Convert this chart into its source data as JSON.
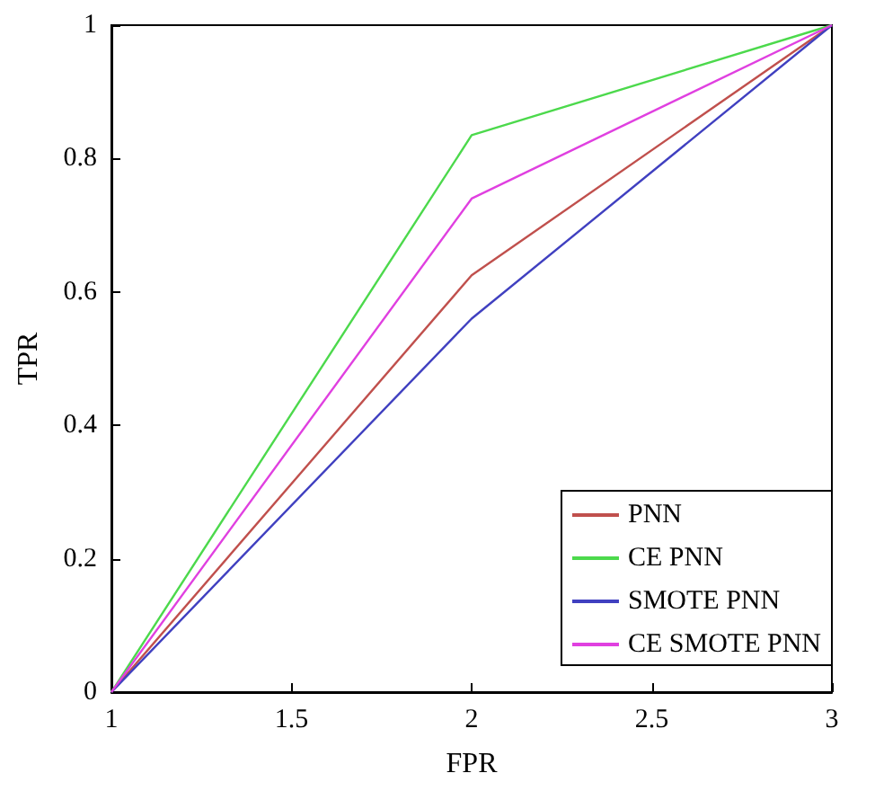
{
  "chart_data": {
    "type": "line",
    "xlabel": "FPR",
    "ylabel": "TPR",
    "x": [
      1,
      2,
      3
    ],
    "series": [
      {
        "name": "PNN",
        "color": "#c0504d",
        "values": [
          0,
          0.625,
          1
        ]
      },
      {
        "name": "CE PNN",
        "color": "#4cd94c",
        "values": [
          0,
          0.835,
          1
        ]
      },
      {
        "name": "SMOTE PNN",
        "color": "#4040c0",
        "values": [
          0,
          0.56,
          1
        ]
      },
      {
        "name": "CE SMOTE PNN",
        "color": "#e040e0",
        "values": [
          0,
          0.74,
          1
        ]
      }
    ],
    "xlim": [
      1,
      3
    ],
    "xticks": [
      1,
      1.5,
      2,
      2.5,
      3
    ],
    "ylim": [
      0,
      1
    ],
    "yticks": [
      0,
      0.2,
      0.4,
      0.6,
      0.8,
      1
    ],
    "grid": false,
    "legend": "bottom right",
    "marker": "none",
    "line_style": "solid"
  }
}
